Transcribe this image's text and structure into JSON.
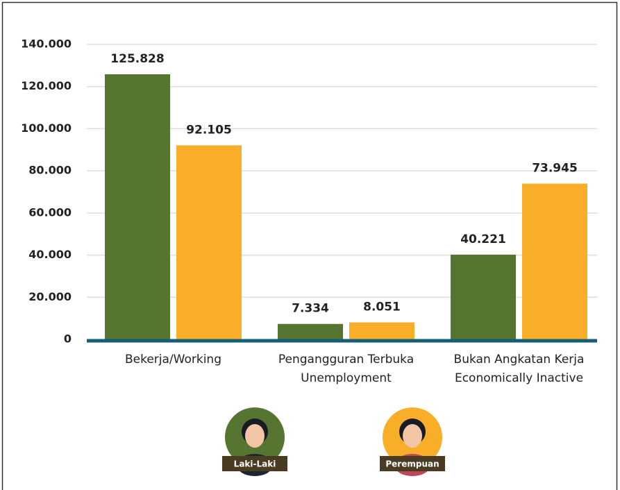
{
  "chart_data": {
    "type": "bar",
    "categories": [
      "Bekerja/Working",
      [
        "Pengangguran Terbuka",
        "Unemployment"
      ],
      [
        "Bukan Angkatan Kerja",
        "Economically Inactive"
      ]
    ],
    "series": [
      {
        "name": "Laki-Laki",
        "color": "#557530",
        "values": [
          125828,
          7334,
          40221
        ],
        "value_labels": [
          "125.828",
          "7.334",
          "40.221"
        ]
      },
      {
        "name": "Perempuan",
        "color": "#f9ae2a",
        "values": [
          92105,
          8051,
          73945
        ],
        "value_labels": [
          "92.105",
          "8.051",
          "73.945"
        ]
      }
    ],
    "ylim": [
      0,
      140000
    ],
    "yticks": [
      0,
      {
        "value": 20000,
        "label": "20.000"
      },
      {
        "value": 40000,
        "label": "40.000"
      },
      {
        "value": 60000,
        "label": "60.000"
      },
      {
        "value": 80000,
        "label": "80.000"
      },
      {
        "value": 100000,
        "label": "100.000"
      },
      {
        "value": 120000,
        "label": "120.000"
      },
      {
        "value": 140000,
        "label": "140.000"
      }
    ],
    "grid": true
  }
}
